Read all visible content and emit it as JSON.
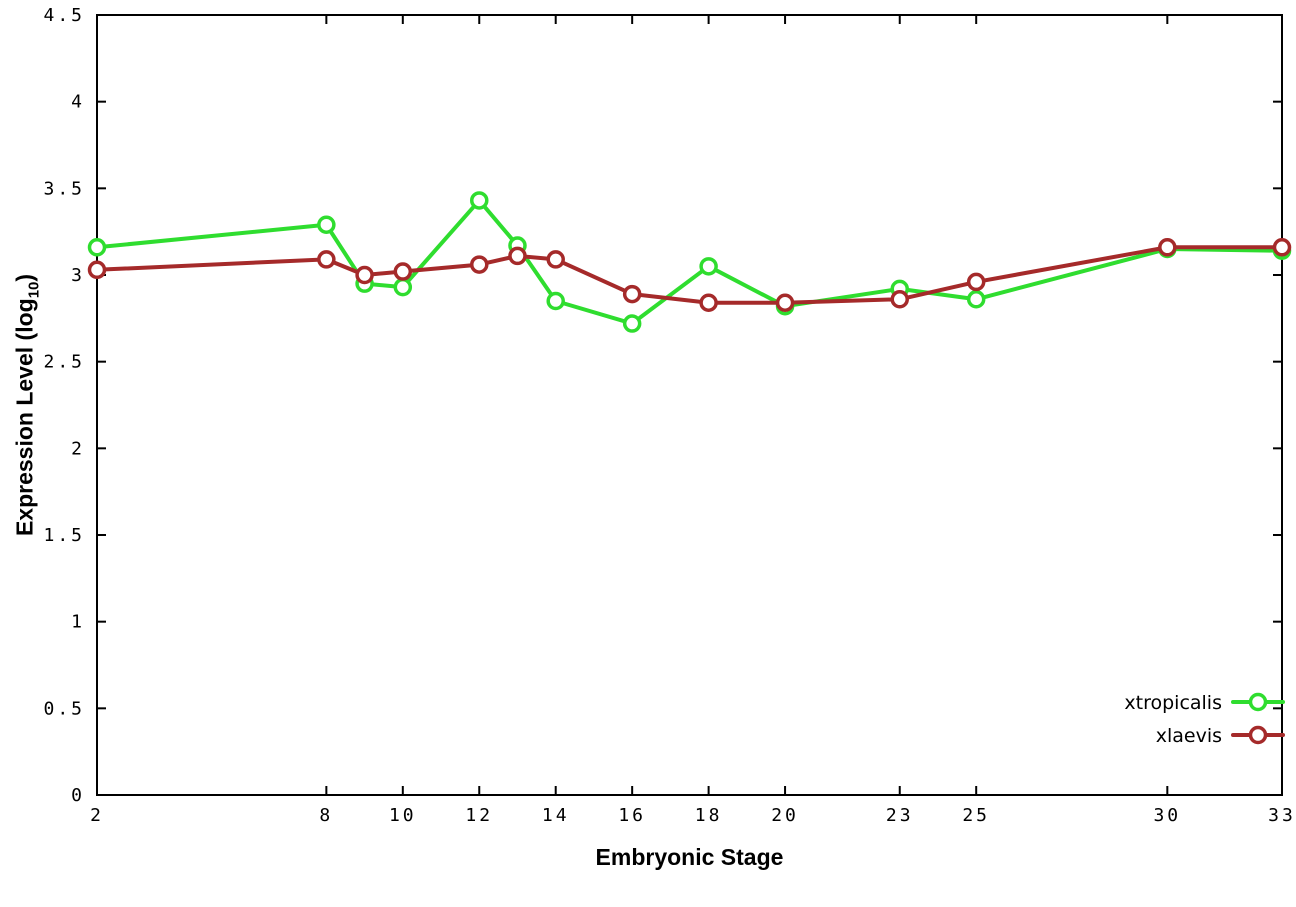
{
  "figure": {
    "background": "#ffffff",
    "xlabel": "Embryonic Stage",
    "ylabel_parts": {
      "pre": "Expression Level (log",
      "sub": "10",
      "post": ")"
    }
  },
  "chart_data": {
    "type": "line",
    "title": "",
    "xlabel": "Embryonic Stage",
    "ylabel": "Expression Level (log10)",
    "xlim": [
      2,
      33
    ],
    "ylim": [
      0,
      4.5
    ],
    "xticks": [
      2,
      8,
      10,
      12,
      14,
      16,
      18,
      20,
      23,
      25,
      30,
      33
    ],
    "yticks": [
      0,
      0.5,
      1,
      1.5,
      2,
      2.5,
      3,
      3.5,
      4,
      4.5
    ],
    "grid": false,
    "legend_position": "bottom-right",
    "marker": "open-circle",
    "x": [
      2,
      8,
      9,
      10,
      12,
      13,
      14,
      16,
      18,
      20,
      23,
      25,
      30,
      33
    ],
    "series": [
      {
        "name": "xtropicalis",
        "color": "#2fdd2f",
        "values": [
          3.16,
          3.29,
          2.95,
          2.93,
          3.43,
          3.17,
          2.85,
          2.72,
          3.05,
          2.82,
          2.92,
          2.86,
          3.15,
          3.14
        ]
      },
      {
        "name": "xlaevis",
        "color": "#a52a2a",
        "values": [
          3.03,
          3.09,
          3.0,
          3.02,
          3.06,
          3.11,
          3.09,
          2.89,
          2.84,
          2.84,
          2.86,
          2.96,
          3.16,
          3.16
        ]
      }
    ]
  }
}
